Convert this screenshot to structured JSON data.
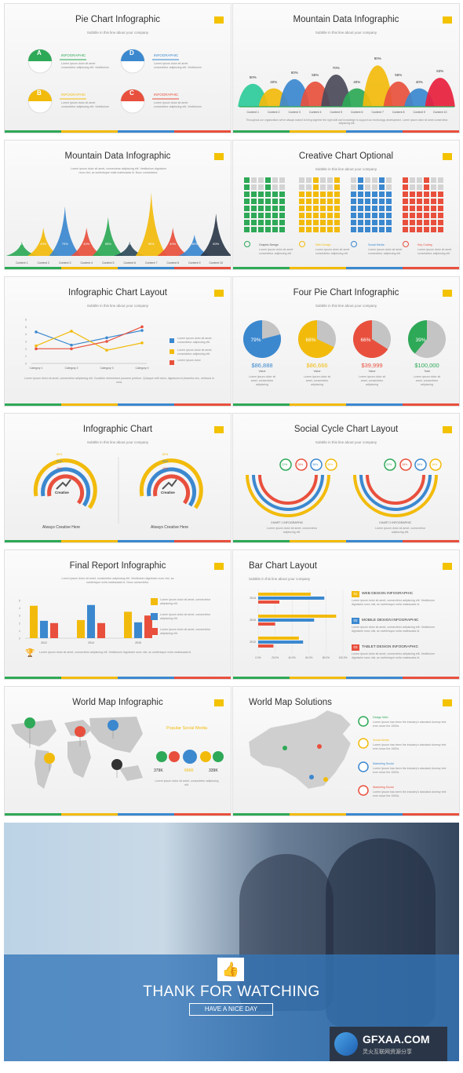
{
  "slides": [
    {
      "title": "Pie Chart Infographic",
      "subtitle": "Subtitle in this line about your company",
      "items": [
        {
          "letter": "A",
          "label": "INFOGRAPHIC",
          "color": "#2ea957"
        },
        {
          "letter": "B",
          "label": "INFOGRAPHIC",
          "color": "#f2bb0c"
        },
        {
          "letter": "D",
          "label": "INFOGRAPHIC",
          "color": "#3b88cf"
        },
        {
          "letter": "C",
          "label": "INFOGRAPHIC",
          "color": "#e8503d"
        }
      ],
      "body": "Lorem ipsum dolor sit amet consectetur adipiscing elit. Vestibulum"
    },
    {
      "title": "Mountain Data Infographic",
      "subtitle": "Subtitle in this line about your company",
      "chart_data": {
        "type": "area",
        "categories": [
          "Content 1",
          "Content 2",
          "Content 3",
          "Content 4",
          "Content 5",
          "Content 6",
          "Content 7",
          "Content 8",
          "Content 9",
          "Content 10"
        ],
        "values": [
          50,
          40,
          60,
          55,
          70,
          40,
          90,
          55,
          40,
          63
        ],
        "labels": [
          "50%",
          "40%",
          "60%",
          "55%",
          "70%",
          "40%",
          "90%",
          "55%",
          "40%",
          "63%"
        ]
      },
      "body": "Throughout our organization we've always looked to bring together the right skill and knowledge to support our technology development. Lorem ipsum dolor sit amet consectetur adipiscing elit."
    },
    {
      "title": "Mountain Data Infographic",
      "intro": "Lorem ipsum dolor sit amet, consectetur adipiscing elit. Vestibulum dignissim nunc nisl, ac scelerisque nulla malesuada id. Nunc consectetur.",
      "chart_data": {
        "type": "area",
        "categories": [
          "Content 1",
          "Content 2",
          "Content 3",
          "Content 4",
          "Content 5",
          "Content 6",
          "Content 7",
          "Content 8",
          "Content 9",
          "Content 10"
        ],
        "values": [
          20,
          40,
          70,
          40,
          55,
          20,
          90,
          40,
          30,
          60
        ],
        "labels": [
          "20%",
          "40%",
          "70%",
          "40%",
          "55%",
          "20%",
          "90%",
          "40%",
          "30%",
          "60%"
        ]
      }
    },
    {
      "title": "Creative Chart Optional",
      "subtitle": "Subtitle in this line about your company",
      "labels": [
        "Graphic Design",
        "Web Design",
        "Social Media",
        "Key Coding"
      ],
      "colors": [
        "#2ea957",
        "#f2bb0c",
        "#3b88cf",
        "#e8503d"
      ],
      "body": "Lorem ipsum dolor sit amet consectetur adipiscing elit"
    },
    {
      "title": "Infographic Chart Layout",
      "subtitle": "Subtitle in this line about your company",
      "chart_data": {
        "type": "line",
        "categories": [
          "Category 1",
          "Category 2",
          "Category 3",
          "Category 4"
        ],
        "ylim": [
          0,
          6
        ],
        "series": [
          {
            "values": [
              4.3,
              2.5,
              3.5,
              4.5
            ],
            "color": "#3b88cf"
          },
          {
            "values": [
              2.4,
              4.4,
              1.8,
              2.8
            ],
            "color": "#f2bb0c"
          },
          {
            "values": [
              2,
              2,
              3,
              5
            ],
            "color": "#e8503d"
          }
        ]
      },
      "legend": [
        "Lorem ipsum dolor sit amet, consectetur adipiscing elit.",
        "Lorem ipsum dolor sit amet, consectetur adipiscing elit.",
        "Lorem ipsum dolor"
      ],
      "body": "Lorem ipsum dolor sit amet, consectetur adipiscing elit. Curabitur elementum posuere pretium. Quisque velit dolor, dignissim et pharetra nec, vehicula in urna."
    },
    {
      "title": "Four Pie Chart Infographic",
      "subtitle": "Subtitle in this line about your company",
      "chart_data": {
        "type": "pie",
        "values": [
          79,
          68,
          66,
          39
        ],
        "labels": [
          "79%",
          "68%",
          "66%",
          "39%"
        ],
        "colors": [
          "#3b88cf",
          "#f2bb0c",
          "#e8503d",
          "#2ea957"
        ]
      },
      "amounts": [
        "$86,888",
        "$86,666",
        "$39,999",
        "$100,000"
      ],
      "captions": [
        "Value",
        "Value",
        "Value",
        "Total"
      ],
      "body": "Lorem ipsum dolor sit amet, consectetur adipiscing"
    },
    {
      "title": "Infographic Chart",
      "subtitle": "Subtitle in this line about your company",
      "rings": [
        "80%",
        "60%",
        "20%"
      ],
      "center": "Creative",
      "caption": "Always Creative Here"
    },
    {
      "title": "Social Cycle Chart Layout",
      "subtitle": "Subtitle in this line about your company",
      "bubbles": [
        "22%",
        "28%",
        "36%",
        "39%"
      ],
      "captions": [
        "CHART 1 INFOGRAPHIC",
        "CHART 2 INFOGRAPHIC"
      ],
      "body": "Lorem ipsum dolor sit amet, consectetur adipiscing elit."
    },
    {
      "title": "Final Report Infographic",
      "intro": "Lorem ipsum dolor sit amet, consectetur adipiscing elit. Vestibulum dignissim nunc nisl, ac scelerisque nulla malesuada id. Nunc consectetur.",
      "chart_data": {
        "type": "bar",
        "categories": [
          "2012",
          "2014",
          "2015"
        ],
        "series": [
          {
            "color": "#f2bb0c",
            "values": [
              4.3,
              2.4,
              3.5
            ]
          },
          {
            "color": "#3b88cf",
            "values": [
              2.3,
              4.4,
              2.1
            ]
          },
          {
            "color": "#e8503d",
            "values": [
              2,
              2,
              3
            ]
          }
        ]
      },
      "legend": [
        "Lorem ipsum dolor sit amet, consectetur adipiscing elit.",
        "Lorem ipsum dolor sit amet, consectetur adipiscing elit.",
        "Lorem ipsum dolor sit amet, consectetur adipiscing elit."
      ],
      "body": "Lorem ipsum dolor sit amet, consectetur adipiscing elit. Vestibulum dignissim nunc nisl, ac scelerisque nulla malesuada id"
    },
    {
      "title": "Bar Chart Layout",
      "subtitle": "Subtitle in this line about your company",
      "chart_data": {
        "type": "bar",
        "orientation": "horizontal",
        "categories": [
          "2014",
          "2013",
          "2012"
        ],
        "xlim": [
          0,
          100
        ],
        "ticks": [
          "0.0%",
          "20.0%",
          "40.0%",
          "60.0%",
          "80.0%",
          "100.0%"
        ],
        "series": [
          {
            "color": "#f2bb0c",
            "values": [
              62,
              92,
              48
            ]
          },
          {
            "color": "#3b88cf",
            "values": [
              78,
              66,
              53
            ]
          },
          {
            "color": "#e8503d",
            "values": [
              25,
              20,
              18
            ]
          }
        ]
      },
      "items": [
        {
          "n": "01",
          "label": "WEB DESIGN INFOGRAPHIC"
        },
        {
          "n": "02",
          "label": "MOBILE DESIGN INFOGRAPHIC"
        },
        {
          "n": "03",
          "label": "TABLET DESIGN INFOGRAPHIC"
        }
      ],
      "item_body": "Lorem ipsum dolor sit amet, consectetur adipiscing elit. Vestibulum dignissim nunc nisl, ac scelerisque nulla malesuada id."
    },
    {
      "title": "World Map Infographic",
      "heading": "Popular Social Media",
      "stats": [
        "379K",
        "666K",
        "339K"
      ],
      "body": "Lorem ipsum dolor sit amet, consectetur adipiscing elit."
    },
    {
      "title": "World Map Solutions",
      "items": [
        "Design Web",
        "Social Media",
        "Marketing Social",
        "Marketing Social"
      ],
      "item_body": "Lorem Ipsum has been the industry's standard dummy text ever since the 1500s."
    }
  ],
  "closing": {
    "title": "THANK FOR WATCHING",
    "subtitle": "HAVE A NICE DAY"
  },
  "watermark": {
    "brand": "GFXAA.COM",
    "tagline": "灵火互联网资源分享"
  }
}
